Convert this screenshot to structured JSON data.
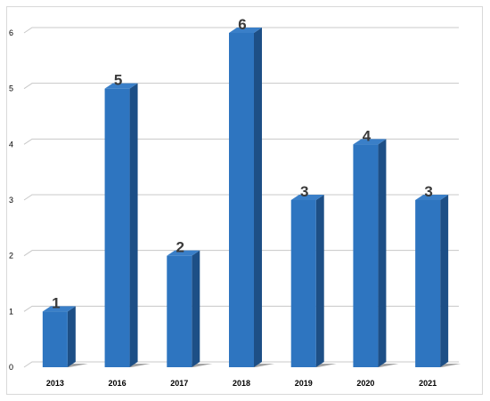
{
  "chart_data": {
    "type": "bar",
    "style": "3d-column",
    "categories": [
      "2013",
      "2016",
      "2017",
      "2018",
      "2019",
      "2020",
      "2021"
    ],
    "values": [
      1,
      5,
      2,
      6,
      3,
      4,
      3
    ],
    "title": "",
    "xlabel": "",
    "ylabel": "",
    "ylim": [
      0,
      6
    ],
    "yticks": [
      0,
      1,
      2,
      3,
      4,
      5,
      6
    ],
    "grid": true,
    "legend": "none",
    "colors": {
      "bar_front": "#2e75c0",
      "bar_side": "#1d4f86",
      "bar_top": "#3a7fc8",
      "grid": "#c8c8c8",
      "axis_text": "#000000",
      "data_label": "#3a3a3a"
    }
  }
}
